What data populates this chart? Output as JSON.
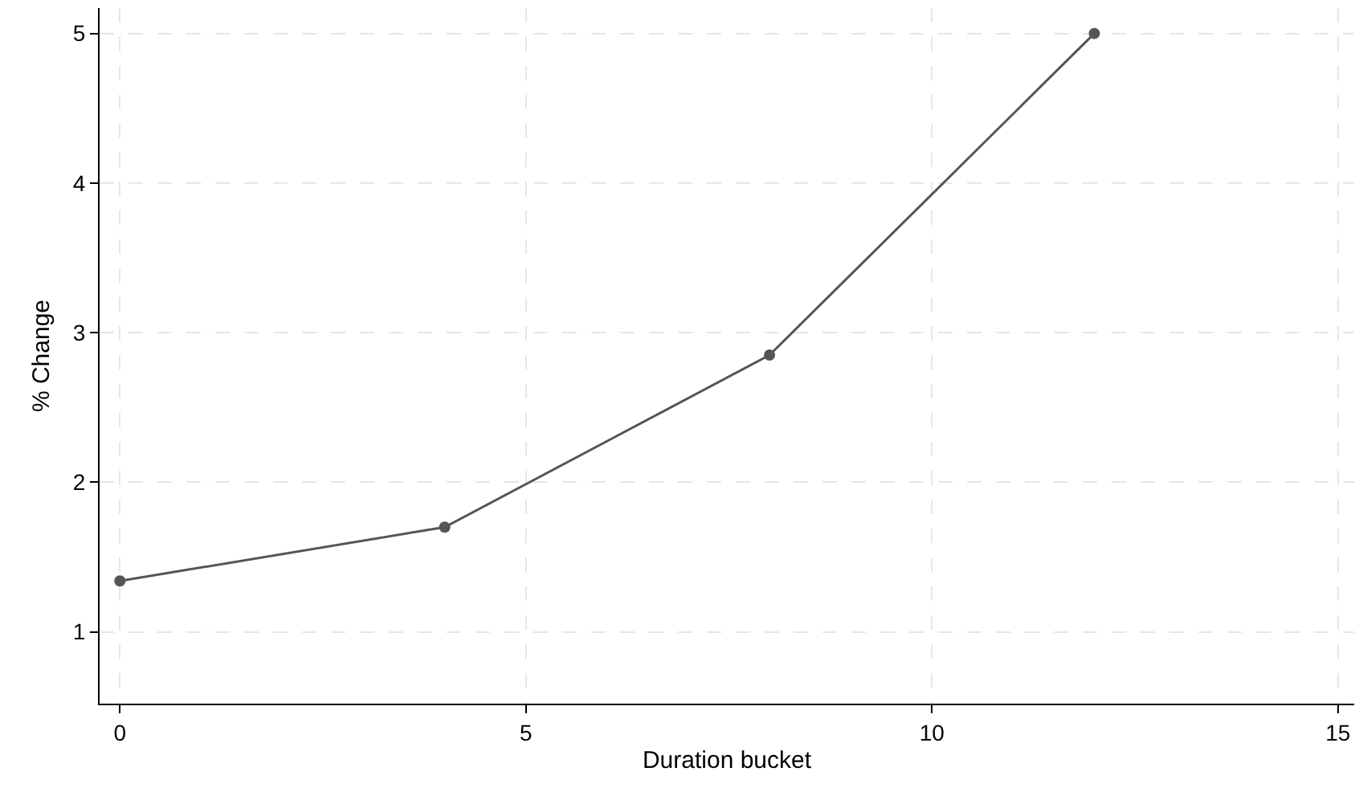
{
  "chart_data": {
    "type": "line",
    "xlabel": "Duration bucket",
    "ylabel": "% Change",
    "x": [
      0,
      4,
      8,
      12
    ],
    "series": [
      {
        "color": "#555555",
        "values": [
          1.34,
          1.7,
          2.85,
          5.0
        ]
      }
    ],
    "xlim": [
      -0.25,
      15.2
    ],
    "ylim": [
      0.52,
      5.17
    ],
    "xticks": [
      0,
      5,
      10,
      15
    ],
    "yticks": [
      1,
      2,
      3,
      4,
      5
    ],
    "grid": true,
    "marker": "circle",
    "line_style": "solid"
  }
}
